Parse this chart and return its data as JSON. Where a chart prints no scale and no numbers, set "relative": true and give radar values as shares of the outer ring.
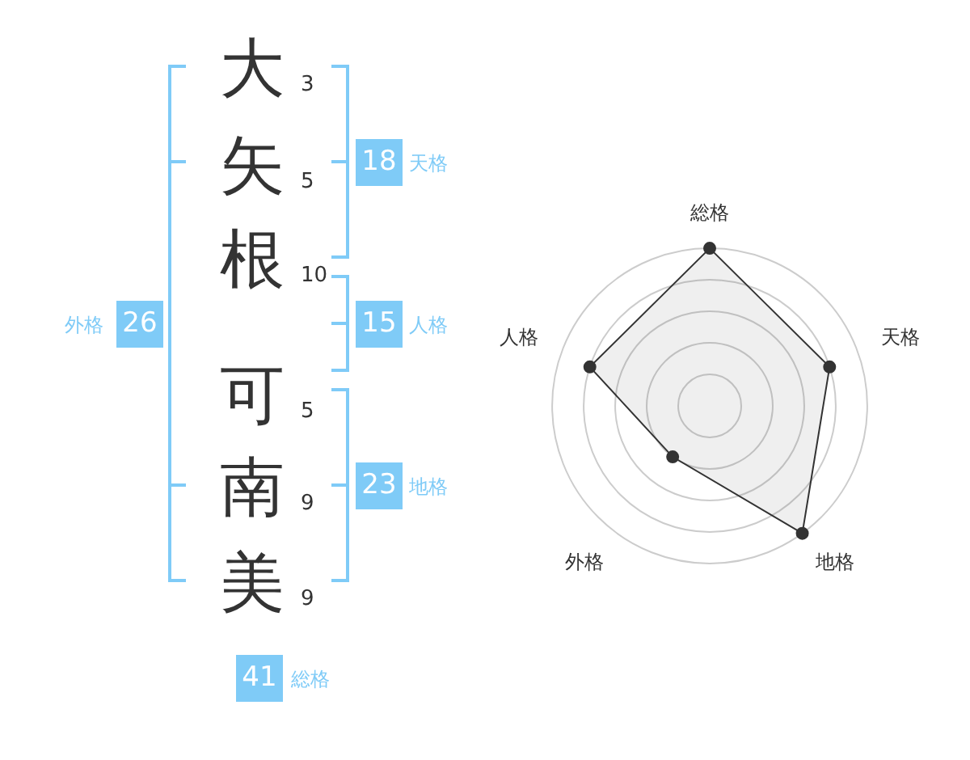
{
  "chart_data": [
    {
      "type": "other",
      "categories": [
        "大",
        "矢",
        "根",
        "可",
        "南",
        "美"
      ],
      "values": [
        3,
        5,
        10,
        5,
        9,
        9
      ],
      "data_labels": true,
      "annotations": [
        "18",
        "天格",
        "15",
        "人格",
        "23",
        "地格",
        "26",
        "外格",
        "41",
        "総格"
      ]
    },
    {
      "type": "radar",
      "categories": [
        "総格",
        "天格",
        "地格",
        "外格",
        "人格"
      ],
      "relative": true,
      "grid": true,
      "marker": "circle",
      "series": [
        {
          "color": "#333333",
          "values": [
            1,
            0.8,
            1,
            0.4,
            0.8
          ]
        }
      ]
    }
  ]
}
